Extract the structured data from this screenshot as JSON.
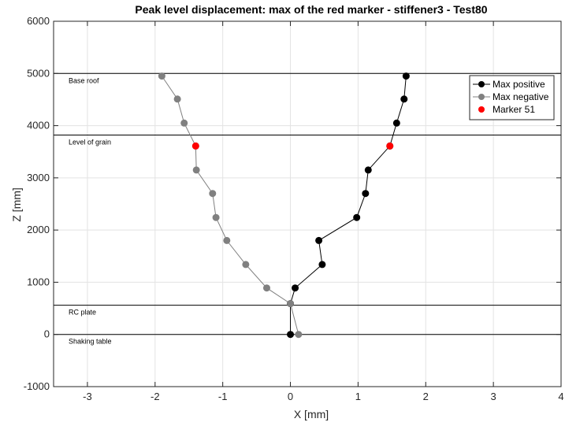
{
  "chart_data": {
    "type": "line",
    "title": "Peak level displacement: max of the red marker - stiffener3 - Test80",
    "xlabel": "X [mm]",
    "ylabel": "Z [mm]",
    "xlim": [
      -3.5,
      4
    ],
    "ylim": [
      -1000,
      6000
    ],
    "xticks": [
      -3,
      -2,
      -1,
      0,
      1,
      2,
      3,
      4
    ],
    "yticks": [
      -1000,
      0,
      1000,
      2000,
      3000,
      4000,
      5000,
      6000
    ],
    "grid": true,
    "legend_position": "top-right",
    "series": [
      {
        "name": "Max positive",
        "color": "#000000",
        "x": [
          0.0,
          0.0,
          0.07,
          0.47,
          0.42,
          0.98,
          1.11,
          1.15,
          1.47,
          1.57,
          1.68,
          1.71
        ],
        "y": [
          0,
          590,
          890,
          1340,
          1800,
          2240,
          2700,
          3150,
          3610,
          4050,
          4510,
          4950
        ]
      },
      {
        "name": "Max negative",
        "color": "#808080",
        "x": [
          0.12,
          0.0,
          -0.35,
          -0.66,
          -0.94,
          -1.1,
          -1.15,
          -1.39,
          -1.4,
          -1.57,
          -1.67,
          -1.9
        ],
        "y": [
          0,
          590,
          890,
          1340,
          1800,
          2240,
          2700,
          3150,
          3610,
          4050,
          4510,
          4950
        ]
      },
      {
        "name": "Marker 51",
        "color": "#ff0000",
        "x": [
          -1.4,
          1.47
        ],
        "y": [
          3610,
          3610
        ]
      }
    ],
    "hlines": [
      {
        "y": 5000,
        "label": "Base roof"
      },
      {
        "y": 3820,
        "label": "Level of grain"
      },
      {
        "y": 560,
        "label": "RC plate"
      },
      {
        "y": 0,
        "label": "Shaking table"
      }
    ]
  }
}
